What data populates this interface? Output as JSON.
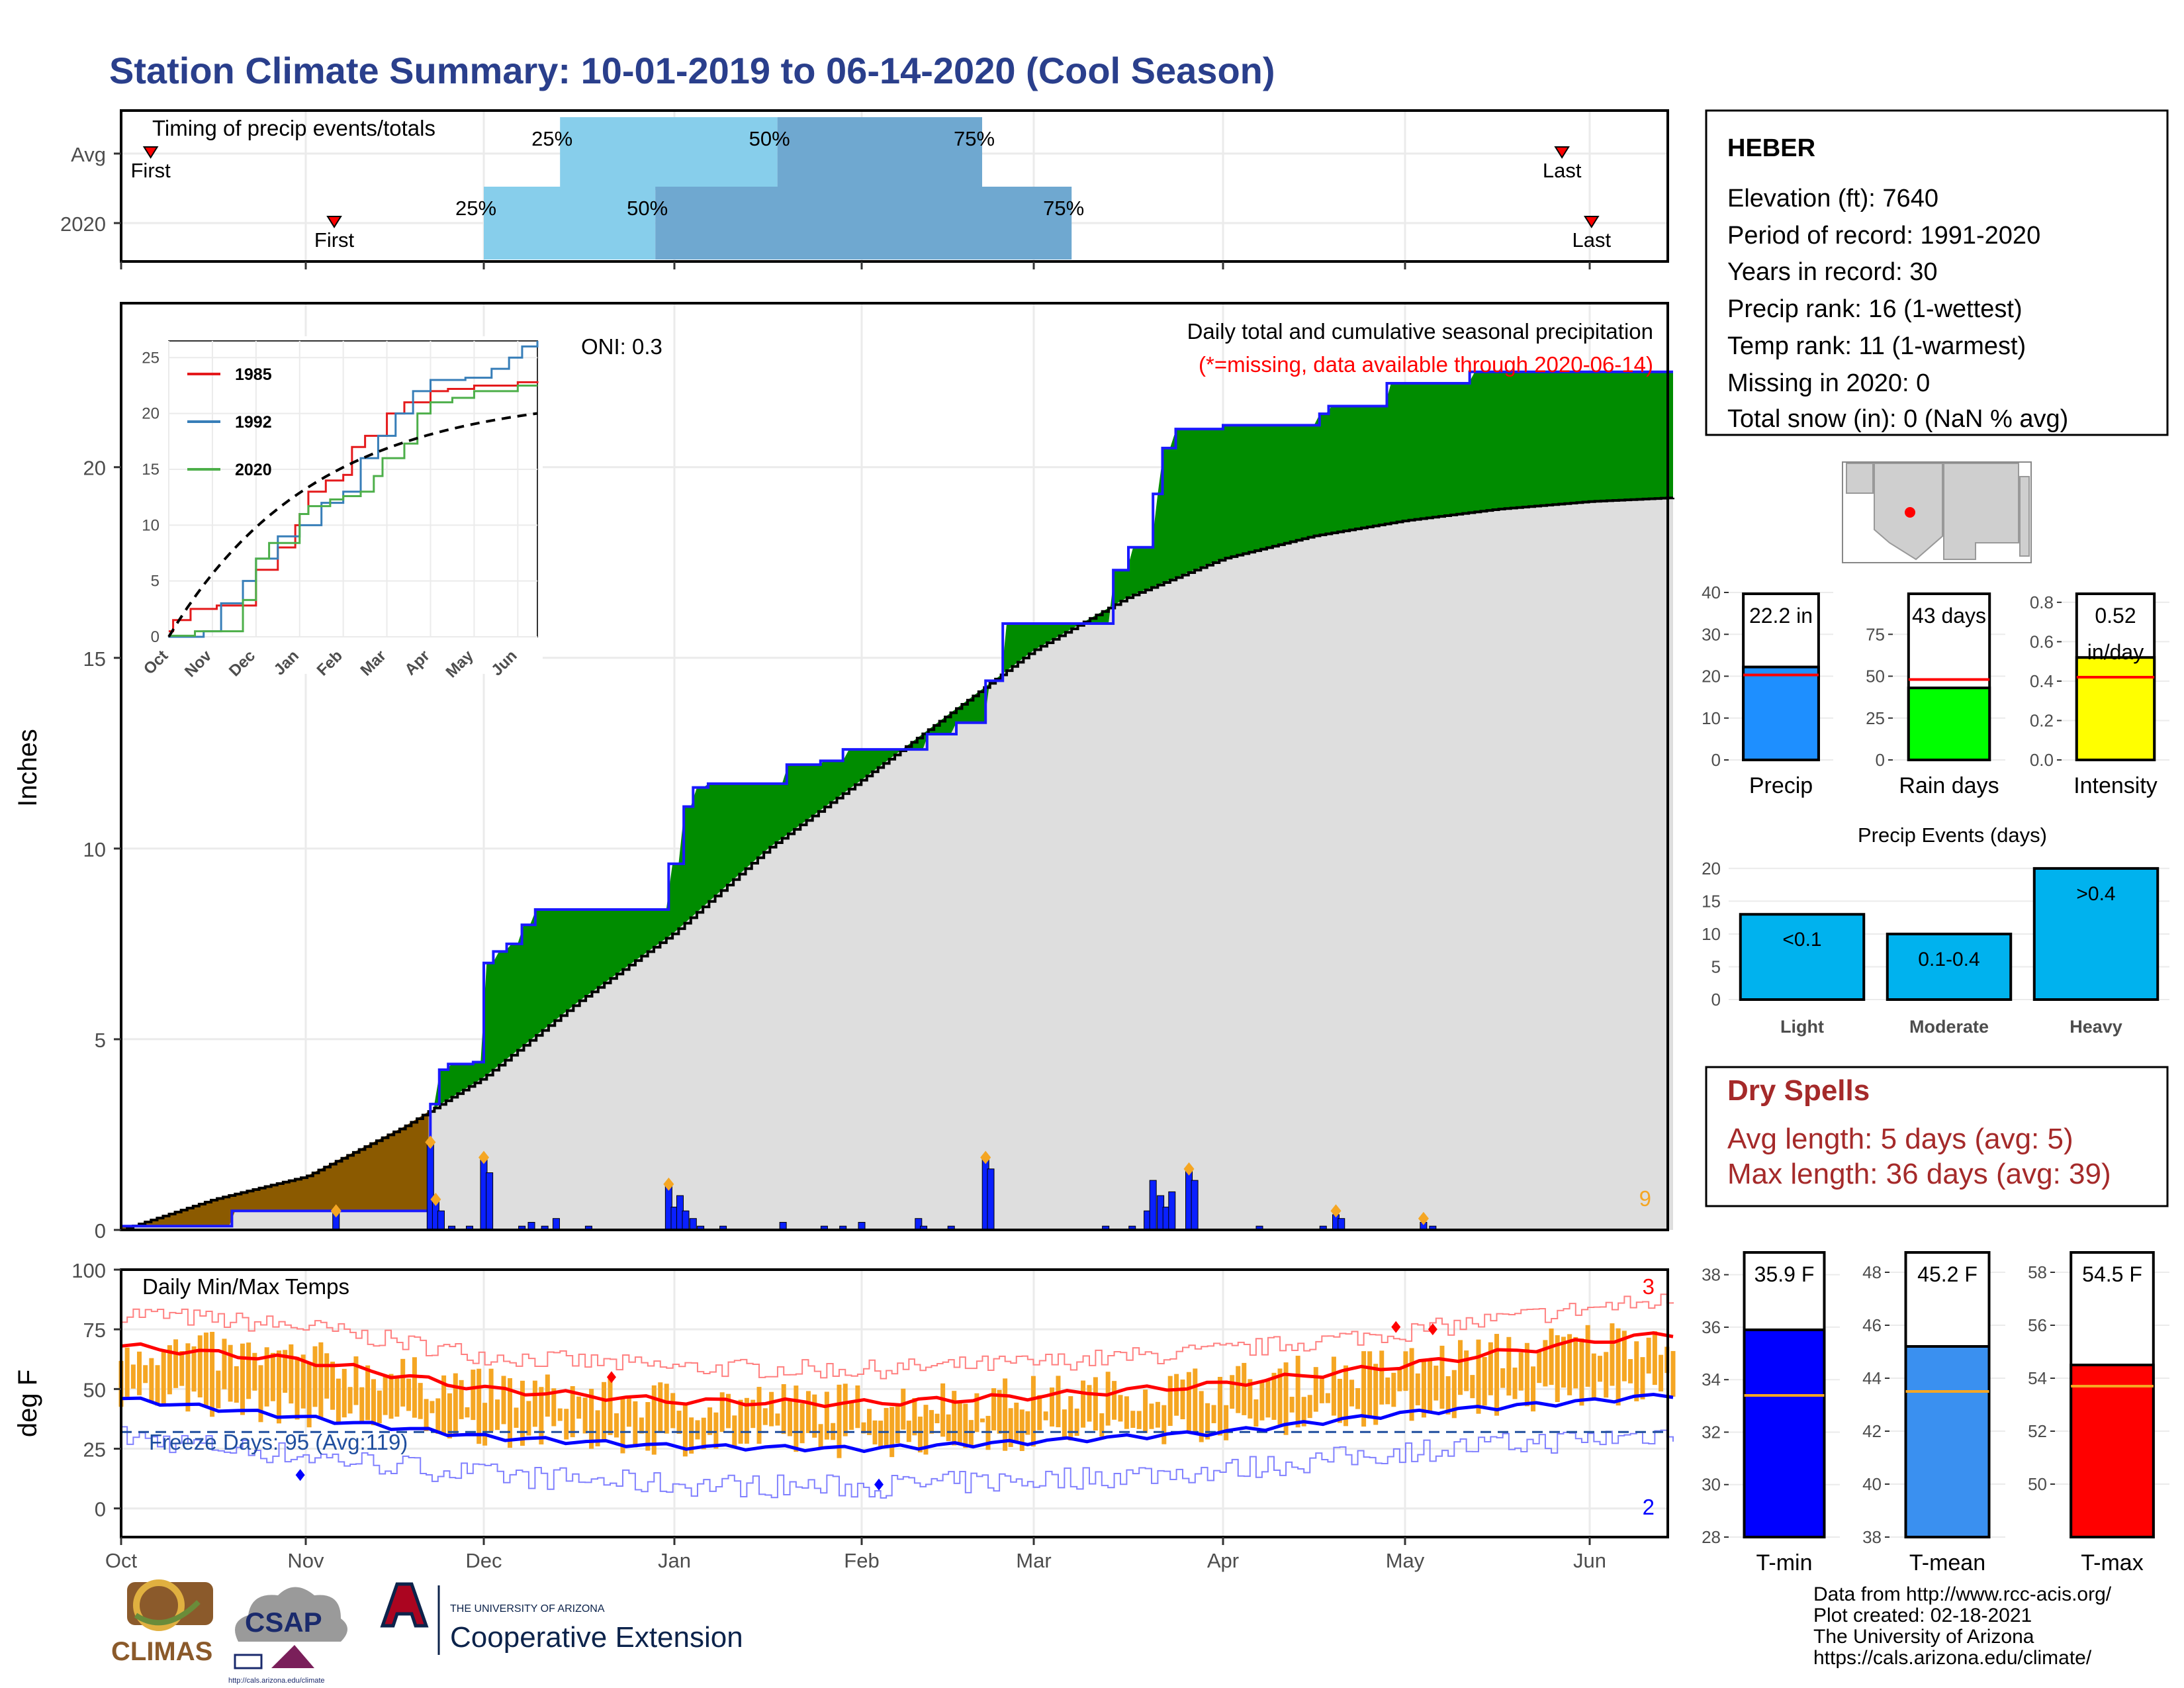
{
  "title": "Station Climate Summary: 10-01-2019 to 06-14-2020 (Cool Season)",
  "colors": {
    "title": "#2a3f8c",
    "q1": "#87ceeb",
    "q2": "#6fa8d0",
    "brown": "#8b5a00",
    "green": "#008c00",
    "gray": "#dedede",
    "blue_bar": "#0a20ff",
    "orange": "#f5a623",
    "red": "#ff0000",
    "tmin": "#0000ff",
    "precip_bar": "#1e8fff",
    "rain_bar": "#00ff00",
    "intensity_bar": "#ffff00",
    "events_bar": "#00b2ee",
    "dry": "#a52a2a",
    "tmean_bar": "#3a90f0"
  },
  "timing": {
    "label": "Timing of precip events/totals",
    "rows": [
      {
        "name": "Avg",
        "first_x": 0.16,
        "q25": 2.4,
        "q50": 3.55,
        "q75": 4.7,
        "last_x": 7.85
      },
      {
        "name": "2020",
        "first_x": 1.16,
        "q25": 2.0,
        "q50": 2.9,
        "q75": 5.2,
        "last_x": 8.01
      }
    ],
    "labels": {
      "first": "First",
      "last": "Last",
      "p25": "25%",
      "p50": "50%",
      "p75": "75%"
    }
  },
  "precip_chart": {
    "ylabel": "Inches",
    "annot_title": "Daily total and cumulative seasonal precipitation",
    "annot_missing": "(*=missing, data available through 2020-06-14)",
    "oni": "ONI: 0.3",
    "count_label": "9",
    "ylim": [
      0,
      24.3
    ],
    "yticks": [
      0,
      5,
      10,
      15,
      20
    ]
  },
  "inset": {
    "xticks": [
      "Oct",
      "Nov",
      "Dec",
      "Jan",
      "Feb",
      "Mar",
      "Apr",
      "May",
      "Jun"
    ],
    "yticks": [
      0,
      5,
      10,
      15,
      20,
      25
    ],
    "legend": [
      {
        "name": "1985",
        "color": "#e41a1c"
      },
      {
        "name": "1992",
        "color": "#377eb8"
      },
      {
        "name": "2020",
        "color": "#4daf4a"
      }
    ]
  },
  "temp_chart": {
    "ylabel": "deg F",
    "title": "Daily Min/Max Temps",
    "freeze": "Freeze Days: 95 (Avg:119)",
    "count_hi": "3",
    "count_lo": "2",
    "yticks": [
      0,
      25,
      50,
      75,
      100
    ],
    "ylim": [
      -12,
      100
    ]
  },
  "months": [
    "Oct",
    "Nov",
    "Dec",
    "Jan",
    "Feb",
    "Mar",
    "Apr",
    "May",
    "Jun"
  ],
  "station": {
    "name": "HEBER",
    "lines": [
      "Elevation (ft): 7640",
      "Period of record: 1991-2020",
      "Years in record: 30",
      "Precip rank: 16 (1-wettest)",
      "Temp rank: 11 (1-warmest)",
      "Missing in 2020: 0",
      "Total snow (in): 0 (NaN % avg)"
    ]
  },
  "bars": {
    "precip": {
      "label": "Precip",
      "value": 22.2,
      "value_label": "22.2 in",
      "avg": 20.3,
      "ymax": 40,
      "ticks": [
        0,
        10,
        20,
        30,
        40
      ]
    },
    "rain": {
      "label": "Rain days",
      "value": 43,
      "value_label": "43 days",
      "avg": 48,
      "ymax": 100,
      "ticks": [
        0,
        25,
        50,
        75
      ]
    },
    "intensity": {
      "label": "Intensity",
      "value": 0.52,
      "value_label_1": "0.52",
      "value_label_2": "in/day",
      "avg": 0.42,
      "ymax": 0.85,
      "ticks": [
        "0.0",
        "0.2",
        "0.4",
        "0.6",
        "0.8"
      ]
    }
  },
  "events": {
    "title": "Precip Events (days)",
    "ticks": [
      0,
      5,
      10,
      15,
      20
    ],
    "items": [
      {
        "name": "Light",
        "label": "<0.1",
        "value": 13
      },
      {
        "name": "Moderate",
        "label": "0.1-0.4",
        "value": 10
      },
      {
        "name": "Heavy",
        "label": ">0.4",
        "value": 20
      }
    ]
  },
  "dry_spells": {
    "title": "Dry Spells",
    "avg": "Avg length: 5 days (avg: 5)",
    "max": "Max length: 36 days (avg: 39)"
  },
  "temps": {
    "tmin": {
      "label": "T-min",
      "value": 35.9,
      "value_label": "35.9 F",
      "avg": 33.4,
      "ymin": 28,
      "ymax": 38.9,
      "ticks": [
        28,
        30,
        32,
        34,
        36,
        38
      ]
    },
    "tmean": {
      "label": "T-mean",
      "value": 45.2,
      "value_label": "45.2 F",
      "avg": 43.5,
      "ymin": 38,
      "ymax": 48.8,
      "ticks": [
        38,
        40,
        42,
        44,
        46,
        48
      ]
    },
    "tmax": {
      "label": "T-max",
      "value": 54.5,
      "value_label": "54.5 F",
      "avg": 53.7,
      "ymin": 48,
      "ymax": 58.8,
      "ticks": [
        50,
        52,
        54,
        56,
        58
      ]
    }
  },
  "logos": {
    "climas": "CLIMAS",
    "csap": "CSAP",
    "csap_url": "http://cals.arizona.edu/climate",
    "ua_small": "THE UNIVERSITY OF ARIZONA",
    "ua_big": "Cooperative Extension"
  },
  "footer": [
    "Data from http://www.rcc-acis.org/",
    "Plot created: 02-18-2021",
    "The University of Arizona",
    "https://cals.arizona.edu/climate/"
  ]
}
